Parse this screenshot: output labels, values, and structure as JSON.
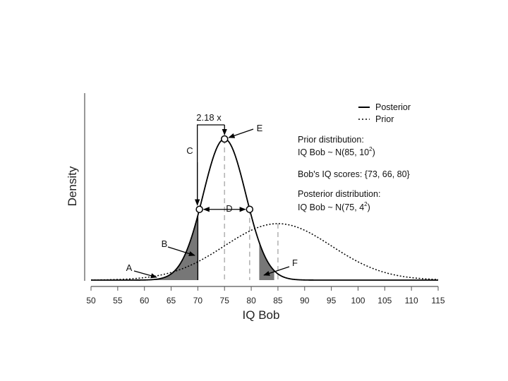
{
  "chart_data": {
    "type": "line",
    "title": "",
    "xlabel": "IQ Bob",
    "ylabel": "Density",
    "xlim": [
      50,
      115
    ],
    "x_ticks": [
      50,
      55,
      60,
      65,
      70,
      75,
      80,
      85,
      90,
      95,
      100,
      105,
      110,
      115
    ],
    "grid": false,
    "legend_position": "top-right",
    "series": [
      {
        "name": "Posterior",
        "distribution": "normal",
        "mean": 75,
        "sd": 4,
        "style": "solid"
      },
      {
        "name": "Prior",
        "distribution": "normal",
        "mean": 85,
        "sd": 10,
        "style": "dotted"
      }
    ],
    "dashed_markers": [
      75,
      79.7,
      85
    ],
    "vertical_lines": [
      70
    ],
    "points": [
      {
        "x": 75,
        "series": "Posterior",
        "label": "E"
      },
      {
        "x": 70.3,
        "series": "Posterior"
      },
      {
        "x": 79.7,
        "series": "Posterior"
      }
    ],
    "shaded_regions": [
      {
        "from": 50,
        "to": 70,
        "label": "A/B"
      },
      {
        "from": 81.5,
        "to": 84.3,
        "label": "F"
      }
    ],
    "info": {
      "prior_heading": "Prior distribution:",
      "prior_main": "IQ Bob ~ N(85, 10",
      "prior_exp": "2",
      "prior_close": ")",
      "scores": "Bob's IQ scores: {73, 66, 80}",
      "posterior_heading": "Posterior distribution:",
      "posterior_main": "IQ Bob ~ N(75, 4",
      "posterior_exp": "2",
      "posterior_close": ")"
    },
    "annotations": {
      "ratio": "2.18 x",
      "A": "A",
      "B": "B",
      "C": "C",
      "D": "D",
      "E": "E",
      "F": "F"
    },
    "colors": {
      "curve": "#000000",
      "shade": "#777777",
      "dashed": "#b5b5b5",
      "axis": "#555555"
    }
  }
}
